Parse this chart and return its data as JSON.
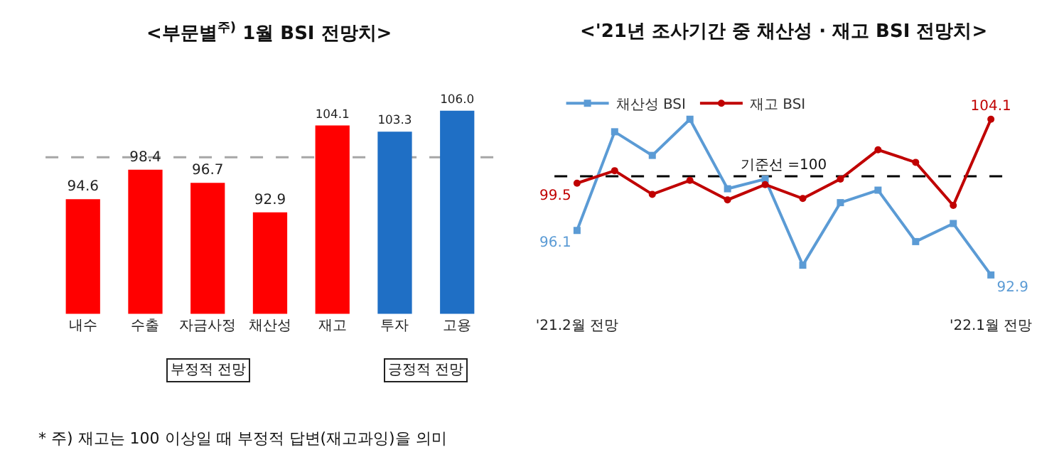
{
  "chart_data": [
    {
      "type": "bar",
      "title": "<부문별$^{주)}$ 1월 BSI 전망치>",
      "categories": [
        "내수",
        "수출",
        "자금사정",
        "채산성",
        "재고",
        "투자",
        "고용"
      ],
      "values": [
        94.6,
        98.4,
        96.7,
        92.9,
        104.1,
        103.3,
        106.0
      ],
      "value_labels": [
        "94.6",
        "98.4",
        "96.7",
        "92.9",
        "104.1",
        "103.3",
        "106.0"
      ],
      "colors": [
        "#ff0000",
        "#ff0000",
        "#ff0000",
        "#ff0000",
        "#ff0000",
        "#1f6fc5",
        "#1f6fc5"
      ],
      "tick_labels": "x",
      "ref_lines": [
        {
          "axis": "y",
          "value": 100,
          "color": "#a6a6a6",
          "line_style": "dashed"
        }
      ],
      "annotations": [
        "부정적 전망",
        "긍정적 전망",
        "* 주) 재고는 100 이상일 때 부정적 답변(재고과잉)을 의미"
      ]
    },
    {
      "type": "line",
      "title": "<'21년 조사기간 중 채산성 · 재고 BSI 전망치>",
      "categories": [
        "'21.2월 전망",
        null,
        null,
        null,
        null,
        null,
        null,
        null,
        null,
        null,
        null,
        "'22.1월 전망"
      ],
      "series": [
        {
          "name": "채산성 BSI",
          "color": "#5b9bd5",
          "marker": "square",
          "values": [
            96.1,
            103.2,
            101.5,
            104.1,
            99.1,
            99.8,
            93.6,
            98.1,
            99.0,
            95.3,
            96.6,
            92.9
          ],
          "value_labels": [
            "96.1",
            null,
            null,
            null,
            null,
            null,
            null,
            null,
            null,
            null,
            null,
            "92.9"
          ]
        },
        {
          "name": "재고 BSI",
          "color": "#c00000",
          "marker": "circle",
          "values": [
            99.5,
            100.4,
            98.7,
            99.7,
            98.3,
            99.4,
            98.4,
            99.8,
            101.9,
            101.0,
            97.9,
            104.1
          ],
          "value_labels": [
            "99.5",
            null,
            null,
            null,
            null,
            null,
            null,
            null,
            null,
            null,
            null,
            "104.1"
          ]
        }
      ],
      "tick_labels": "x",
      "legend": "top left",
      "line_style": "solid",
      "ref_lines": [
        {
          "axis": "y",
          "value": 100,
          "label": "기준선 =100",
          "color": "#000000",
          "line_style": "dashed"
        }
      ]
    }
  ]
}
